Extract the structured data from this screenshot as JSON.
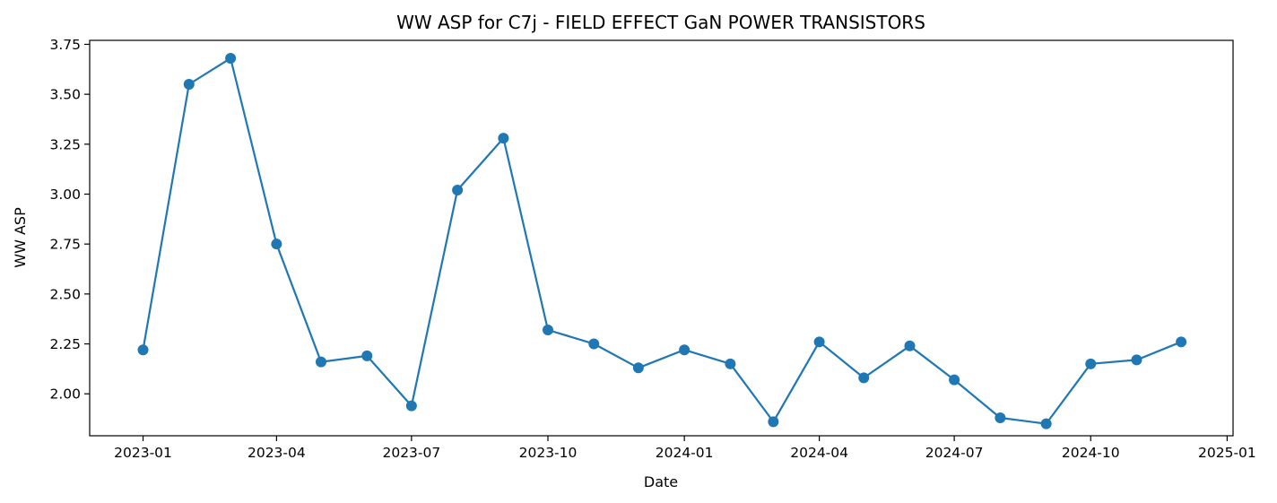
{
  "chart_data": {
    "type": "line",
    "title": "WW ASP for C7j - FIELD EFFECT GaN POWER TRANSISTORS",
    "xlabel": "Date",
    "ylabel": "WW ASP",
    "x": [
      "2023-01-01",
      "2023-02-01",
      "2023-03-01",
      "2023-04-01",
      "2023-05-01",
      "2023-06-01",
      "2023-07-01",
      "2023-08-01",
      "2023-09-01",
      "2023-10-01",
      "2023-11-01",
      "2023-12-01",
      "2024-01-01",
      "2024-02-01",
      "2024-03-01",
      "2024-04-01",
      "2024-05-01",
      "2024-06-01",
      "2024-07-01",
      "2024-08-01",
      "2024-09-01",
      "2024-10-01",
      "2024-11-01",
      "2024-12-01"
    ],
    "series": [
      {
        "values": [
          2.22,
          3.55,
          3.68,
          2.75,
          2.16,
          2.19,
          1.94,
          3.02,
          3.28,
          2.32,
          2.25,
          2.13,
          2.22,
          2.15,
          1.86,
          2.26,
          2.08,
          2.24,
          2.07,
          1.88,
          1.85,
          2.15,
          2.17,
          2.26
        ],
        "color": "#1f77b4",
        "marker": "circle"
      }
    ],
    "xlim": [
      "2022-11-26",
      "2025-01-05"
    ],
    "ylim": [
      1.79,
      3.77
    ],
    "xticks": [
      "2023-01-01",
      "2023-04-01",
      "2023-07-01",
      "2023-10-01",
      "2024-01-01",
      "2024-04-01",
      "2024-07-01",
      "2024-10-01",
      "2025-01-01"
    ],
    "xtick_labels": [
      "2023-01",
      "2023-04",
      "2023-07",
      "2023-10",
      "2024-01",
      "2024-04",
      "2024-07",
      "2024-10",
      "2025-01"
    ],
    "yticks": [
      2.0,
      2.25,
      2.5,
      2.75,
      3.0,
      3.25,
      3.5,
      3.75
    ],
    "ytick_labels": [
      "2.00",
      "2.25",
      "2.50",
      "2.75",
      "3.00",
      "3.25",
      "3.50",
      "3.75"
    ],
    "grid": false,
    "legend": "none"
  }
}
